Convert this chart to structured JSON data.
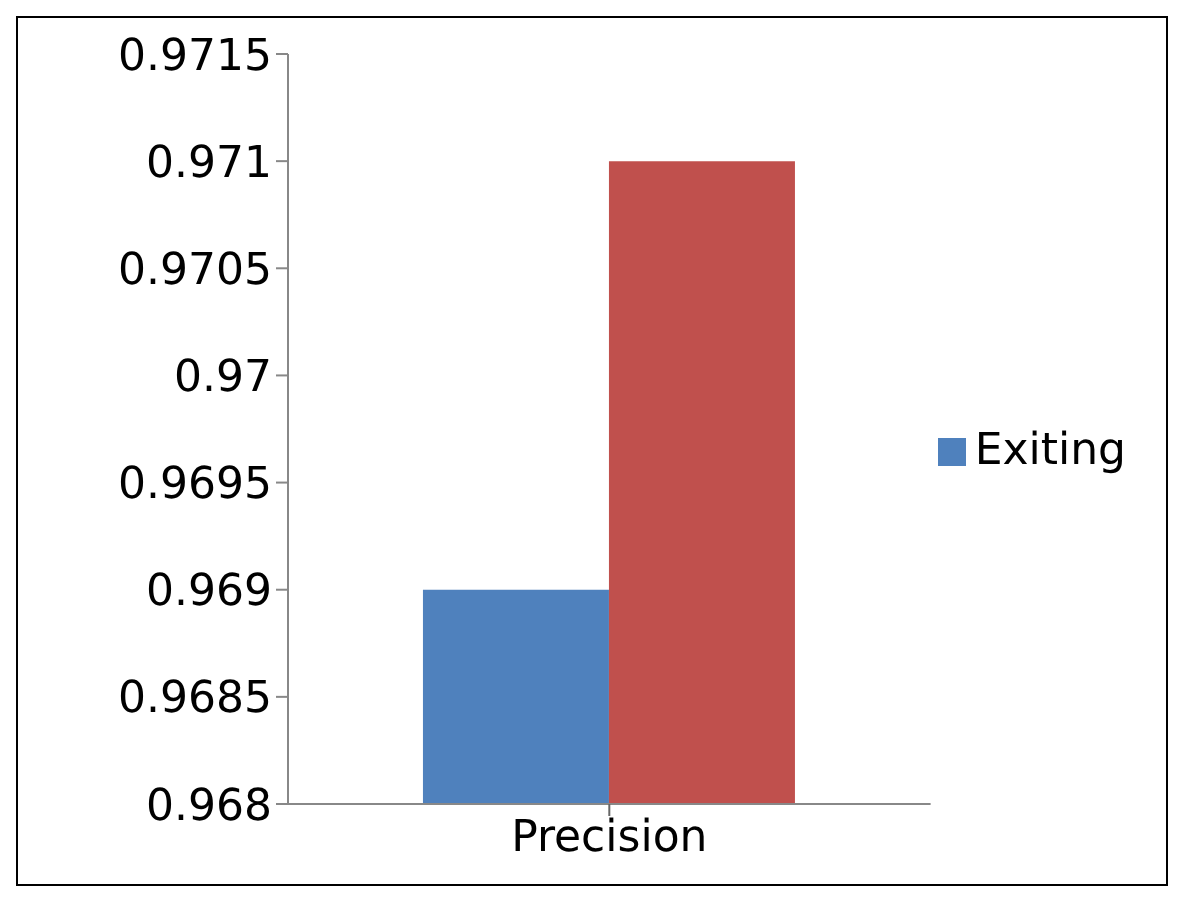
{
  "chart_data": {
    "type": "bar",
    "categories": [
      "Precision"
    ],
    "series": [
      {
        "name": "Exiting",
        "color": "#4f81bd",
        "values": [
          0.969
        ]
      },
      {
        "color": "#c0504d",
        "values": [
          0.971
        ]
      }
    ],
    "ylim": [
      0.968,
      0.9715
    ],
    "yticks": [
      0.968,
      0.9685,
      0.969,
      0.9695,
      0.97,
      0.9705,
      0.971,
      0.9715
    ],
    "grid": false,
    "legend": "right"
  }
}
